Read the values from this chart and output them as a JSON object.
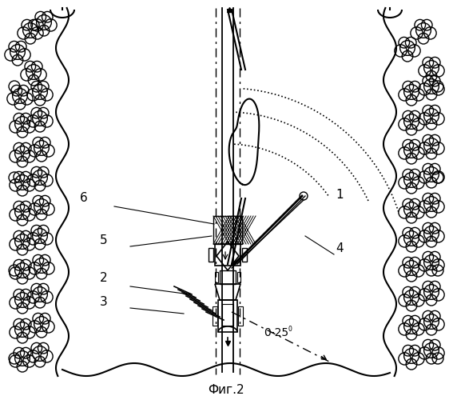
{
  "title": "Фиг.2",
  "bg_color": "#ffffff",
  "line_color": "#000000",
  "label_1": "1",
  "label_2": "2",
  "label_3": "3",
  "label_4": "4",
  "label_5": "5",
  "label_6": "6",
  "angle_label": "0-25",
  "fig_width": 5.62,
  "fig_height": 5.0
}
